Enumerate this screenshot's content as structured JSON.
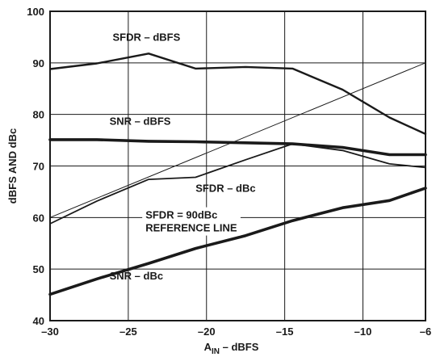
{
  "chart_data": {
    "type": "line",
    "title": "",
    "xlabel": {
      "main": "A",
      "sub": "IN",
      "suffix": " – dBFS"
    },
    "ylabel": "dBFS AND dBc",
    "xlim": [
      -30,
      -6
    ],
    "ylim": [
      40,
      100
    ],
    "grid": true,
    "xticks": [
      -30,
      -25,
      -20,
      -15,
      -10,
      -6
    ],
    "xtick_labels": [
      "–30",
      "–25",
      "–20",
      "–15",
      "–10",
      "–6"
    ],
    "yticks": [
      40,
      50,
      60,
      70,
      80,
      90,
      100
    ],
    "ytick_labels": [
      "40",
      "50",
      "60",
      "70",
      "80",
      "90",
      "100"
    ],
    "series": [
      {
        "name": "SFDR – dBFS",
        "stroke": "#1a1a1a",
        "width": 2.4,
        "x": [
          -30,
          -27,
          -23.7,
          -20.7,
          -17.5,
          -14.5,
          -11.3,
          -8.3,
          -6
        ],
        "y": [
          88.8,
          89.9,
          91.8,
          88.9,
          89.2,
          88.9,
          84.8,
          79.4,
          76.2
        ]
      },
      {
        "name": "SNR – dBFS",
        "stroke": "#1a1a1a",
        "width": 3.6,
        "x": [
          -30,
          -27,
          -23.7,
          -20.7,
          -17.5,
          -14.5,
          -11.3,
          -8.3,
          -6
        ],
        "y": [
          75.1,
          75.1,
          74.8,
          74.7,
          74.5,
          74.3,
          73.6,
          72.2,
          72.2
        ]
      },
      {
        "name": "SFDR – dBc",
        "stroke": "#1a1a1a",
        "width": 1.8,
        "x": [
          -30,
          -27,
          -23.7,
          -20.7,
          -17.5,
          -14.5,
          -11.3,
          -8.3,
          -6
        ],
        "y": [
          58.8,
          63.2,
          67.4,
          67.8,
          71.2,
          74.3,
          73.0,
          70.4,
          69.7
        ]
      },
      {
        "name": "SNR – dBc",
        "stroke": "#1a1a1a",
        "width": 3.6,
        "x": [
          -30,
          -27,
          -23.7,
          -20.7,
          -17.5,
          -14.5,
          -11.3,
          -8.3,
          -6
        ],
        "y": [
          45.1,
          48.1,
          51.1,
          54.0,
          56.5,
          59.4,
          61.9,
          63.3,
          65.7
        ]
      },
      {
        "name": "SFDR = 90dBc REFERENCE LINE",
        "stroke": "#1a1a1a",
        "width": 1.0,
        "x": [
          -30,
          -6
        ],
        "y": [
          60,
          90
        ]
      }
    ],
    "annotations": [
      {
        "lines": [
          "SFDR – dBFS"
        ],
        "x": -26,
        "y": 94.3
      },
      {
        "lines": [
          "SNR – dBFS"
        ],
        "x": -26.2,
        "y": 78.0
      },
      {
        "lines": [
          "SFDR – dBc"
        ],
        "x": -20.7,
        "y": 65.0
      },
      {
        "lines": [
          "SFDR = 90dBc",
          "REFERENCE LINE"
        ],
        "x": -23.9,
        "y": 59.8,
        "bg": true
      },
      {
        "lines": [
          "SNR – dBc"
        ],
        "x": -26.2,
        "y": 48.0
      }
    ]
  }
}
